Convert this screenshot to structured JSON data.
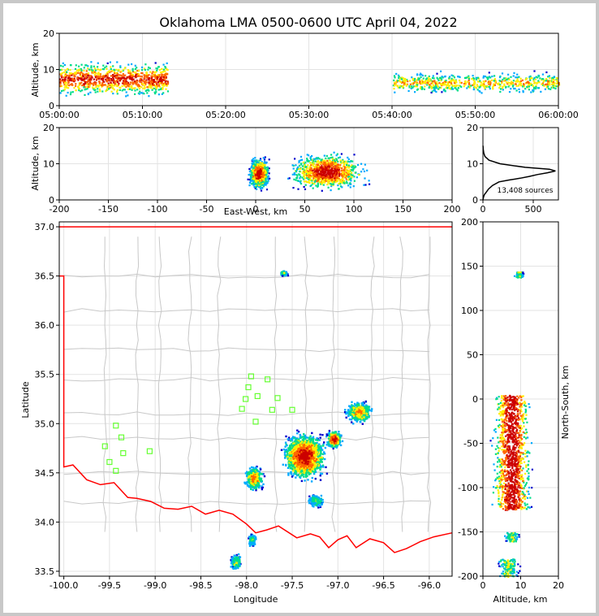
{
  "title": "Oklahoma LMA 0500-0600 UTC April 04, 2022",
  "colors": {
    "border": "#000000",
    "grid": "#e3e3e3",
    "state_border": "#ff0000",
    "county_lines": "#c8c8c8",
    "station_marker": "#66ff33",
    "density_scale": [
      "#0000cc",
      "#00aaff",
      "#00dd88",
      "#ffee00",
      "#ff6600",
      "#cc0000"
    ]
  },
  "chart_data": [
    {
      "id": "time-altitude",
      "type": "heatmap",
      "xlabel": "",
      "ylabel": "Altitude, km",
      "xlim": [
        "05:00:00",
        "06:00:00"
      ],
      "ylim": [
        0,
        20
      ],
      "xticks": [
        "05:00:00",
        "05:10:00",
        "05:20:00",
        "05:30:00",
        "05:40:00",
        "05:50:00",
        "06:00:00"
      ],
      "yticks": [
        "0",
        "10",
        "20"
      ],
      "clusters": [
        {
          "x": [
            "05:00:00",
            "05:13:00"
          ],
          "y": [
            2,
            13
          ],
          "peak_y": 7.5,
          "intensity": "high"
        },
        {
          "x": [
            "05:40:00",
            "06:00:00"
          ],
          "y": [
            3,
            10
          ],
          "peak_y": 6.5,
          "intensity": "medium"
        }
      ]
    },
    {
      "id": "ew-altitude",
      "type": "heatmap",
      "xlabel": "East-West, km",
      "ylabel": "Altitude, km",
      "xlim": [
        -200,
        200
      ],
      "ylim": [
        0,
        20
      ],
      "xticks": [
        "-200",
        "-150",
        "-100",
        "-50",
        "0",
        "50",
        "100",
        "150",
        "200"
      ],
      "yticks": [
        "0",
        "10",
        "20"
      ],
      "clusters": [
        {
          "x": [
            -10,
            15
          ],
          "y": [
            2,
            12
          ],
          "peak_y": 7.5,
          "intensity": "high"
        },
        {
          "x": [
            25,
            120
          ],
          "y": [
            1,
            13
          ],
          "peak_y": 8,
          "intensity": "high"
        }
      ]
    },
    {
      "id": "altitude-histogram",
      "type": "line",
      "xlim": [
        0,
        750
      ],
      "ylim": [
        0,
        20
      ],
      "xticks": [
        "0",
        "500"
      ],
      "yticks": [
        "0",
        "10",
        "20"
      ],
      "annotation": "13,408 sources",
      "profile": [
        [
          0,
          0
        ],
        [
          3,
          0.5
        ],
        [
          8,
          1
        ],
        [
          15,
          1.5
        ],
        [
          30,
          2
        ],
        [
          55,
          3
        ],
        [
          95,
          4
        ],
        [
          160,
          5
        ],
        [
          260,
          5.5
        ],
        [
          370,
          6
        ],
        [
          460,
          6.5
        ],
        [
          540,
          7
        ],
        [
          640,
          7.5
        ],
        [
          720,
          8
        ],
        [
          660,
          8.5
        ],
        [
          420,
          9
        ],
        [
          170,
          10
        ],
        [
          60,
          11
        ],
        [
          20,
          12
        ],
        [
          8,
          13
        ],
        [
          3,
          14
        ],
        [
          1,
          15
        ]
      ]
    },
    {
      "id": "plan-view",
      "type": "heatmap",
      "xlabel": "Longitude",
      "ylabel": "Latitude",
      "xlim": [
        -100.05,
        -95.75
      ],
      "ylim": [
        33.45,
        37.05
      ],
      "xticks": [
        "-100.0",
        "-99.5",
        "-99.0",
        "-98.5",
        "-98.0",
        "-97.5",
        "-97.0",
        "-96.5",
        "-96.0"
      ],
      "yticks": [
        "33.5",
        "34.0",
        "34.5",
        "35.0",
        "35.5",
        "36.0",
        "36.5",
        "37.0"
      ],
      "clusters": [
        {
          "lon": [
            -97.65,
            -97.1
          ],
          "lat": [
            34.4,
            34.95
          ],
          "intensity": "high"
        },
        {
          "lon": [
            -97.15,
            -96.95
          ],
          "lat": [
            34.75,
            34.95
          ],
          "intensity": "high"
        },
        {
          "lon": [
            -96.95,
            -96.6
          ],
          "lat": [
            35.0,
            35.25
          ],
          "intensity": "medium"
        },
        {
          "lon": [
            -98.05,
            -97.8
          ],
          "lat": [
            34.3,
            34.6
          ],
          "intensity": "medium"
        },
        {
          "lon": [
            -97.35,
            -97.15
          ],
          "lat": [
            34.15,
            34.3
          ],
          "intensity": "low"
        },
        {
          "lon": [
            -98.2,
            -98.05
          ],
          "lat": [
            33.5,
            33.7
          ],
          "intensity": "low"
        },
        {
          "lon": [
            -98.0,
            -97.9
          ],
          "lat": [
            33.75,
            33.9
          ],
          "intensity": "low"
        },
        {
          "lon": [
            -97.65,
            -97.55
          ],
          "lat": [
            36.5,
            36.57
          ],
          "intensity": "low"
        }
      ],
      "stations": [
        {
          "lon": -97.95,
          "lat": 35.48
        },
        {
          "lon": -97.77,
          "lat": 35.45
        },
        {
          "lon": -97.98,
          "lat": 35.37
        },
        {
          "lon": -97.88,
          "lat": 35.28
        },
        {
          "lon": -98.01,
          "lat": 35.25
        },
        {
          "lon": -97.66,
          "lat": 35.26
        },
        {
          "lon": -97.72,
          "lat": 35.14
        },
        {
          "lon": -97.5,
          "lat": 35.14
        },
        {
          "lon": -97.9,
          "lat": 35.02
        },
        {
          "lon": -98.05,
          "lat": 35.15
        },
        {
          "lon": -99.43,
          "lat": 34.98
        },
        {
          "lon": -99.37,
          "lat": 34.86
        },
        {
          "lon": -99.55,
          "lat": 34.77
        },
        {
          "lon": -99.35,
          "lat": 34.7
        },
        {
          "lon": -99.06,
          "lat": 34.72
        },
        {
          "lon": -99.5,
          "lat": 34.61
        },
        {
          "lon": -99.43,
          "lat": 34.52
        }
      ]
    },
    {
      "id": "ns-altitude",
      "type": "heatmap",
      "xlabel": "Altitude, km",
      "ylabel": "North-South, km",
      "xlim": [
        0,
        20
      ],
      "ylim": [
        -200,
        200
      ],
      "xticks": [
        "0",
        "10",
        "20"
      ],
      "yticks": [
        "-200",
        "-150",
        "-100",
        "-50",
        "0",
        "50",
        "100",
        "150",
        "200"
      ],
      "clusters": [
        {
          "x": [
            1,
            13
          ],
          "y": [
            -125,
            5
          ],
          "peak_x": 7.5,
          "intensity": "high"
        },
        {
          "x": [
            5,
            10
          ],
          "y": [
            -160,
            -150
          ],
          "intensity": "low"
        },
        {
          "x": [
            3,
            10
          ],
          "y": [
            -200,
            -180
          ],
          "intensity": "low"
        },
        {
          "x": [
            8,
            11
          ],
          "y": [
            138,
            144
          ],
          "intensity": "low"
        }
      ]
    }
  ]
}
